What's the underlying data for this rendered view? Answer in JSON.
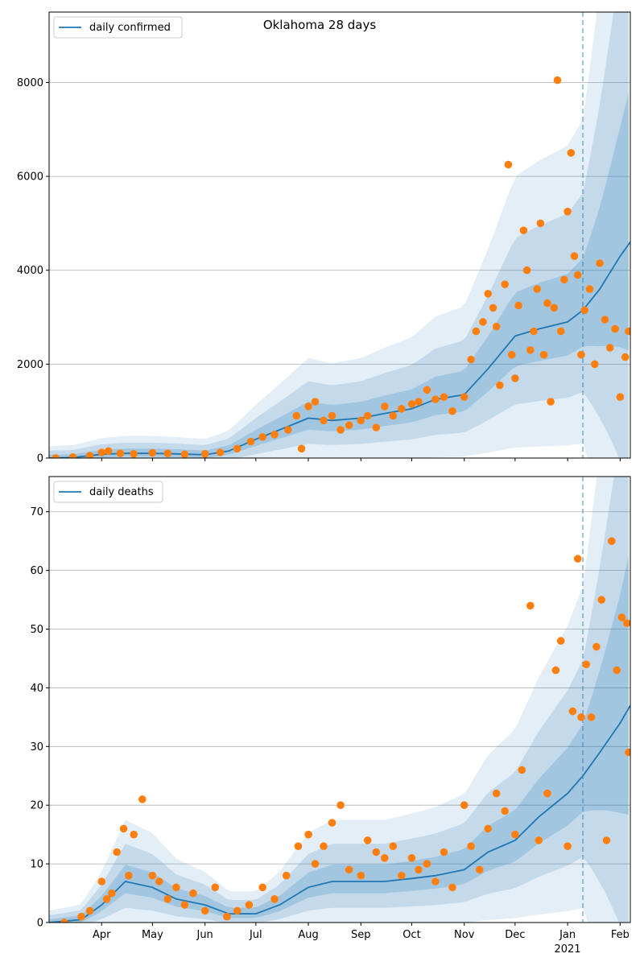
{
  "figure": {
    "title": "Oklahoma 28 days"
  },
  "chart_data": [
    {
      "type": "scatter",
      "title": "Oklahoma 28 days",
      "xlabel": "",
      "ylabel": "",
      "xlim": [
        "2020-03-01",
        "2021-02-07"
      ],
      "ylim": [
        0,
        9500
      ],
      "grid": "y",
      "legend_placement": "top-left",
      "yticks": [
        0,
        2000,
        4000,
        6000,
        8000
      ],
      "forecast_start": "2021-01-10",
      "series": [
        {
          "name": "daily confirmed",
          "kind": "line",
          "color": "#1f77b4",
          "x": [
            "2020-03-01",
            "2020-03-15",
            "2020-04-01",
            "2020-04-15",
            "2020-05-01",
            "2020-05-15",
            "2020-06-01",
            "2020-06-15",
            "2020-07-01",
            "2020-07-15",
            "2020-08-01",
            "2020-08-15",
            "2020-09-01",
            "2020-09-15",
            "2020-10-01",
            "2020-10-15",
            "2020-11-01",
            "2020-11-15",
            "2020-12-01",
            "2020-12-15",
            "2021-01-01",
            "2021-01-10",
            "2021-01-20",
            "2021-02-01",
            "2021-02-07"
          ],
          "y": [
            0,
            10,
            80,
            100,
            100,
            90,
            70,
            150,
            400,
            600,
            850,
            800,
            850,
            950,
            1050,
            1250,
            1350,
            1900,
            2600,
            2750,
            2900,
            3150,
            3600,
            4300,
            4600
          ]
        },
        {
          "kind": "points",
          "color": "#ff7f0e",
          "x": [
            "2020-03-05",
            "2020-03-15",
            "2020-03-25",
            "2020-04-01",
            "2020-04-05",
            "2020-04-12",
            "2020-04-20",
            "2020-05-01",
            "2020-05-10",
            "2020-05-20",
            "2020-06-01",
            "2020-06-10",
            "2020-06-20",
            "2020-06-28",
            "2020-07-05",
            "2020-07-12",
            "2020-07-20",
            "2020-07-25",
            "2020-07-28",
            "2020-08-01",
            "2020-08-05",
            "2020-08-10",
            "2020-08-15",
            "2020-08-20",
            "2020-08-25",
            "2020-09-01",
            "2020-09-05",
            "2020-09-10",
            "2020-09-15",
            "2020-09-20",
            "2020-09-25",
            "2020-10-01",
            "2020-10-05",
            "2020-10-10",
            "2020-10-15",
            "2020-10-20",
            "2020-10-25",
            "2020-11-01",
            "2020-11-05",
            "2020-11-08",
            "2020-11-12",
            "2020-11-15",
            "2020-11-18",
            "2020-11-20",
            "2020-11-22",
            "2020-11-25",
            "2020-11-27",
            "2020-11-29",
            "2020-12-01",
            "2020-12-03",
            "2020-12-06",
            "2020-12-08",
            "2020-12-10",
            "2020-12-12",
            "2020-12-14",
            "2020-12-16",
            "2020-12-18",
            "2020-12-20",
            "2020-12-22",
            "2020-12-24",
            "2020-12-26",
            "2020-12-28",
            "2020-12-30",
            "2021-01-01",
            "2021-01-03",
            "2021-01-05",
            "2021-01-07",
            "2021-01-09",
            "2021-01-11",
            "2021-01-14",
            "2021-01-17",
            "2021-01-20",
            "2021-01-23",
            "2021-01-26",
            "2021-01-29",
            "2021-02-01",
            "2021-02-04",
            "2021-02-06"
          ],
          "y": [
            0,
            20,
            50,
            120,
            150,
            100,
            90,
            110,
            100,
            80,
            90,
            120,
            200,
            350,
            450,
            500,
            600,
            900,
            200,
            1100,
            1200,
            800,
            900,
            600,
            700,
            800,
            900,
            650,
            1100,
            900,
            1050,
            1150,
            1200,
            1450,
            1250,
            1300,
            1000,
            1300,
            2100,
            2700,
            2900,
            3500,
            3200,
            2800,
            1550,
            3700,
            6250,
            2200,
            1700,
            3250,
            4850,
            4000,
            2300,
            2700,
            3600,
            5000,
            2200,
            3300,
            1200,
            3200,
            8050,
            2700,
            3800,
            5250,
            6500,
            4300,
            3900,
            2200,
            3150,
            3600,
            2000,
            4150,
            2950,
            2350,
            2750,
            1300,
            2150,
            2700
          ]
        }
      ]
    },
    {
      "type": "scatter",
      "xlabel": "",
      "ylabel": "",
      "xlim": [
        "2020-03-01",
        "2021-02-07"
      ],
      "ylim": [
        0,
        76
      ],
      "grid": "y",
      "legend_placement": "top-left",
      "yticks": [
        0,
        10,
        20,
        30,
        40,
        50,
        60,
        70
      ],
      "xticks": [
        "Apr",
        "May",
        "Jun",
        "Jul",
        "Aug",
        "Sep",
        "Oct",
        "Nov",
        "Dec",
        "Jan",
        "Feb"
      ],
      "xtick_dates": [
        "2020-04-01",
        "2020-05-01",
        "2020-06-01",
        "2020-07-01",
        "2020-08-01",
        "2020-09-01",
        "2020-10-01",
        "2020-11-01",
        "2020-12-01",
        "2021-01-01",
        "2021-02-01"
      ],
      "year_label": "2021",
      "forecast_start": "2021-01-10",
      "series": [
        {
          "name": "daily deaths",
          "kind": "line",
          "color": "#1f77b4",
          "x": [
            "2020-03-01",
            "2020-03-20",
            "2020-04-01",
            "2020-04-15",
            "2020-05-01",
            "2020-05-15",
            "2020-06-01",
            "2020-06-15",
            "2020-07-01",
            "2020-07-15",
            "2020-08-01",
            "2020-08-15",
            "2020-09-01",
            "2020-09-15",
            "2020-10-01",
            "2020-10-15",
            "2020-11-01",
            "2020-11-15",
            "2020-12-01",
            "2020-12-15",
            "2021-01-01",
            "2021-01-10",
            "2021-01-20",
            "2021-02-01",
            "2021-02-07"
          ],
          "y": [
            0,
            0.5,
            3,
            7,
            6,
            4,
            3,
            1.5,
            1.5,
            3,
            6,
            7,
            7,
            7,
            7.5,
            8,
            9,
            12,
            14,
            18,
            22,
            25,
            29,
            34,
            37
          ]
        },
        {
          "kind": "points",
          "color": "#ff7f0e",
          "x": [
            "2020-03-10",
            "2020-03-20",
            "2020-03-25",
            "2020-04-01",
            "2020-04-04",
            "2020-04-07",
            "2020-04-10",
            "2020-04-14",
            "2020-04-17",
            "2020-04-20",
            "2020-04-25",
            "2020-05-01",
            "2020-05-05",
            "2020-05-10",
            "2020-05-15",
            "2020-05-20",
            "2020-05-25",
            "2020-06-01",
            "2020-06-07",
            "2020-06-14",
            "2020-06-20",
            "2020-06-27",
            "2020-07-05",
            "2020-07-12",
            "2020-07-19",
            "2020-07-26",
            "2020-08-01",
            "2020-08-05",
            "2020-08-10",
            "2020-08-15",
            "2020-08-20",
            "2020-08-25",
            "2020-09-01",
            "2020-09-05",
            "2020-09-10",
            "2020-09-15",
            "2020-09-20",
            "2020-09-25",
            "2020-10-01",
            "2020-10-05",
            "2020-10-10",
            "2020-10-15",
            "2020-10-20",
            "2020-10-25",
            "2020-11-01",
            "2020-11-05",
            "2020-11-10",
            "2020-11-15",
            "2020-11-20",
            "2020-11-25",
            "2020-12-01",
            "2020-12-05",
            "2020-12-10",
            "2020-12-15",
            "2020-12-20",
            "2020-12-25",
            "2020-12-28",
            "2021-01-01",
            "2021-01-04",
            "2021-01-07",
            "2021-01-09",
            "2021-01-12",
            "2021-01-15",
            "2021-01-18",
            "2021-01-21",
            "2021-01-24",
            "2021-01-27",
            "2021-01-30",
            "2021-02-02",
            "2021-02-05",
            "2021-02-06"
          ],
          "y": [
            0,
            1,
            2,
            7,
            4,
            5,
            12,
            16,
            8,
            15,
            21,
            8,
            7,
            4,
            6,
            3,
            5,
            2,
            6,
            1,
            2,
            3,
            6,
            4,
            8,
            13,
            15,
            10,
            13,
            17,
            20,
            9,
            8,
            14,
            12,
            11,
            13,
            8,
            11,
            9,
            10,
            7,
            12,
            6,
            20,
            13,
            9,
            16,
            22,
            19,
            15,
            26,
            54,
            14,
            22,
            43,
            48,
            13,
            36,
            62,
            35,
            44,
            35,
            47,
            55,
            14,
            65,
            43,
            52,
            51,
            29
          ]
        }
      ]
    }
  ]
}
